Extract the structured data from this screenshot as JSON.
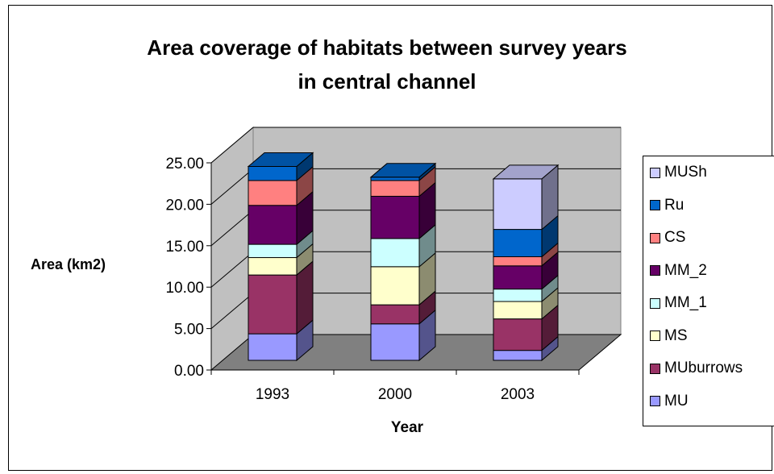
{
  "chart_data": {
    "type": "bar",
    "stacked": true,
    "three_d": true,
    "title": "Area coverage of habitats between survey years in central channel",
    "title_lines": [
      "Area coverage of habitats between survey years",
      "in central channel"
    ],
    "xlabel": "Year",
    "ylabel": "Area (km2)",
    "categories": [
      "1993",
      "2000",
      "2003"
    ],
    "ylim": [
      0,
      25
    ],
    "yticks": [
      "0.00",
      "5.00",
      "10.00",
      "15.00",
      "20.00",
      "25.00"
    ],
    "grid": true,
    "legend_position": "right",
    "series": [
      {
        "name": "MU",
        "color": "#9999ff",
        "values": [
          3.2,
          4.4,
          1.2
        ]
      },
      {
        "name": "MUburrows",
        "color": "#993366",
        "values": [
          7.1,
          2.3,
          3.8
        ]
      },
      {
        "name": "MS",
        "color": "#ffffcc",
        "values": [
          2.1,
          4.6,
          2.1
        ]
      },
      {
        "name": "MM_1",
        "color": "#ccffff",
        "values": [
          1.6,
          3.4,
          1.5
        ]
      },
      {
        "name": "MM_2",
        "color": "#660066",
        "values": [
          4.7,
          5.1,
          2.8
        ]
      },
      {
        "name": "CS",
        "color": "#ff8080",
        "values": [
          3.0,
          1.9,
          1.1
        ]
      },
      {
        "name": "Ru",
        "color": "#0066cc",
        "values": [
          1.7,
          0.4,
          3.3
        ]
      },
      {
        "name": "MUSh",
        "color": "#ccccff",
        "values": [
          0,
          0,
          6.1
        ]
      }
    ]
  }
}
